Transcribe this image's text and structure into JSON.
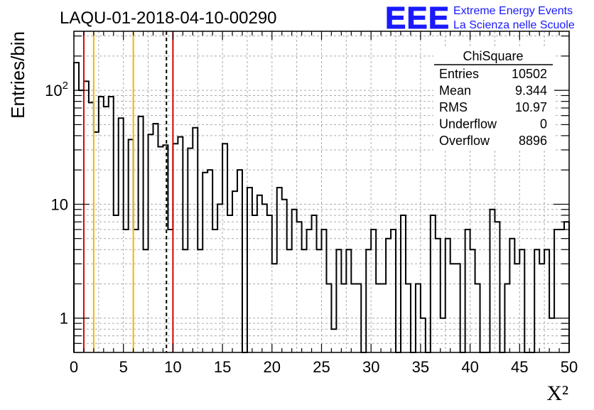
{
  "title": "LAQU-01-2018-04-10-00290",
  "logo": {
    "mark": "EEE",
    "line1": "Extreme Energy Events",
    "line2": "La Scienza nelle Scuole",
    "color": "#1a1aff"
  },
  "stats_box": {
    "title": "ChiSquare",
    "rows": [
      {
        "label": "Entries",
        "value": "10502"
      },
      {
        "label": "Mean",
        "value": "9.344"
      },
      {
        "label": "RMS",
        "value": "10.97"
      },
      {
        "label": "Underflow",
        "value": "0"
      },
      {
        "label": "Overflow",
        "value": "8896"
      }
    ]
  },
  "chart_data": {
    "type": "histogram",
    "title": "LAQU-01-2018-04-10-00290",
    "xlabel": "X²",
    "ylabel": "Entries/bin",
    "xlim": [
      0,
      50
    ],
    "ylim": [
      0.5,
      330
    ],
    "yscale": "log",
    "grid": true,
    "bin_width": 0.5,
    "x_ticks": [
      "0",
      "5",
      "10",
      "15",
      "20",
      "25",
      "30",
      "35",
      "40",
      "45",
      "50"
    ],
    "y_ticks": [
      "1",
      "10",
      "10²"
    ],
    "values": [
      175,
      100,
      120,
      78,
      43,
      88,
      72,
      88,
      8,
      57,
      6,
      37,
      6,
      59,
      4,
      41,
      51,
      32,
      33,
      6,
      34,
      39,
      4,
      31,
      47,
      4,
      19,
      20,
      6,
      10,
      34,
      8,
      13,
      20,
      0,
      14,
      8,
      12,
      10,
      8,
      3,
      14,
      11,
      4,
      9,
      7,
      4,
      6,
      8,
      4,
      6,
      2,
      0.8,
      4,
      2,
      4,
      2,
      2,
      0,
      4,
      6,
      2,
      2,
      5,
      6,
      0,
      8,
      2,
      0,
      2,
      1,
      0,
      8,
      5,
      1,
      5,
      3,
      3,
      0,
      6,
      4,
      2,
      0,
      0,
      9,
      7,
      0,
      2,
      5,
      3,
      4,
      0,
      0,
      4,
      3,
      4,
      1,
      6,
      6,
      7
    ],
    "vertical_lines": [
      {
        "x": 1,
        "color": "#dd0000",
        "style": "solid"
      },
      {
        "x": 2,
        "color": "#f0b800",
        "style": "solid"
      },
      {
        "x": 6,
        "color": "#f0b800",
        "style": "solid"
      },
      {
        "x": 9.344,
        "color": "#000000",
        "style": "dashed"
      },
      {
        "x": 10,
        "color": "#dd0000",
        "style": "solid"
      }
    ]
  }
}
